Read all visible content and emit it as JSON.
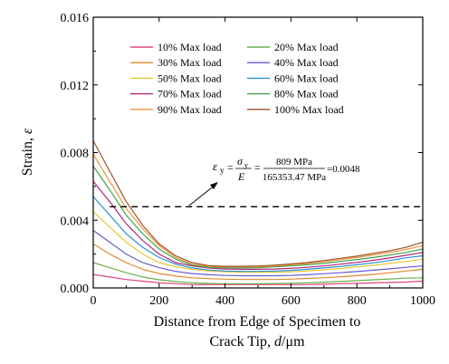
{
  "chart_data": {
    "type": "line",
    "title": "",
    "xlabel_line1": "Distance from Edge of Specimen to",
    "xlabel_line2_prefix": "Crack Tip, ",
    "xlabel_line2_var": "d",
    "xlabel_line2_unit": "/μm",
    "ylabel_text": "Strain, ",
    "ylabel_var": "ε",
    "xlim": [
      0,
      1000
    ],
    "ylim": [
      0.0,
      0.016
    ],
    "xticks": [
      0,
      200,
      400,
      600,
      800,
      1000
    ],
    "xtick_labels": [
      "0",
      "200",
      "400",
      "600",
      "800",
      "1000"
    ],
    "yticks": [
      0.0,
      0.004,
      0.008,
      0.012,
      0.016
    ],
    "ytick_labels": [
      "0.000",
      "0.004",
      "0.008",
      "0.012",
      "0.016"
    ],
    "grid": false,
    "legend_position": "top-center",
    "x": [
      0,
      50,
      100,
      150,
      200,
      250,
      300,
      350,
      400,
      450,
      500,
      550,
      600,
      650,
      700,
      750,
      800,
      850,
      900,
      950,
      1000
    ],
    "series": [
      {
        "name": "10% Max load",
        "color": "#e0457b",
        "values": [
          0.0008,
          0.00065,
          0.0005,
          0.0004,
          0.0003,
          0.00025,
          0.0002,
          0.0002,
          0.0002,
          0.0002,
          0.0002,
          0.0002,
          0.0002,
          0.0002,
          0.00022,
          0.00025,
          0.00027,
          0.0003,
          0.00032,
          0.00035,
          0.0004
        ]
      },
      {
        "name": "20% Max load",
        "color": "#6ab04c",
        "values": [
          0.0015,
          0.0012,
          0.0009,
          0.00065,
          0.00048,
          0.00038,
          0.0003,
          0.00027,
          0.00025,
          0.00025,
          0.00025,
          0.00026,
          0.00028,
          0.0003,
          0.00034,
          0.00038,
          0.00043,
          0.00048,
          0.00053,
          0.00058,
          0.0006
        ]
      },
      {
        "name": "30% Max load",
        "color": "#e08a2e",
        "values": [
          0.0026,
          0.002,
          0.0015,
          0.0011,
          0.00085,
          0.0007,
          0.0006,
          0.00055,
          0.00052,
          0.0005,
          0.0005,
          0.0005,
          0.00052,
          0.00056,
          0.0006,
          0.00066,
          0.00073,
          0.0008,
          0.0009,
          0.001,
          0.0011
        ]
      },
      {
        "name": "40% Max load",
        "color": "#6a5acd",
        "values": [
          0.0034,
          0.0027,
          0.002,
          0.0015,
          0.0012,
          0.00098,
          0.00085,
          0.00078,
          0.00074,
          0.00072,
          0.00072,
          0.00072,
          0.00074,
          0.00078,
          0.00084,
          0.0009,
          0.00097,
          0.00105,
          0.00113,
          0.00122,
          0.0013
        ]
      },
      {
        "name": "50% Max load",
        "color": "#e6c833",
        "values": [
          0.0045,
          0.0036,
          0.0027,
          0.002,
          0.0015,
          0.00125,
          0.0011,
          0.001,
          0.00095,
          0.00093,
          0.00092,
          0.00093,
          0.00095,
          0.001,
          0.00107,
          0.00115,
          0.00124,
          0.00134,
          0.00145,
          0.00156,
          0.0017
        ]
      },
      {
        "name": "60% Max load",
        "color": "#2a8fd6",
        "values": [
          0.0054,
          0.0043,
          0.0032,
          0.0024,
          0.0018,
          0.0014,
          0.00118,
          0.00106,
          0.001,
          0.00098,
          0.00098,
          0.001,
          0.00104,
          0.0011,
          0.00118,
          0.00127,
          0.00137,
          0.00148,
          0.00162,
          0.00178,
          0.0019
        ]
      },
      {
        "name": "70% Max load",
        "color": "#b0267a",
        "values": [
          0.0063,
          0.0051,
          0.0038,
          0.0028,
          0.002,
          0.0015,
          0.0013,
          0.00118,
          0.00112,
          0.0011,
          0.0011,
          0.00112,
          0.00116,
          0.00122,
          0.0013,
          0.0014,
          0.00151,
          0.00163,
          0.00177,
          0.00193,
          0.0021
        ]
      },
      {
        "name": "80% Max load",
        "color": "#3fa34d",
        "values": [
          0.0072,
          0.0058,
          0.0043,
          0.0032,
          0.0023,
          0.0017,
          0.00135,
          0.00122,
          0.00118,
          0.00118,
          0.0012,
          0.00125,
          0.0013,
          0.00137,
          0.00145,
          0.00156,
          0.00168,
          0.0018,
          0.00195,
          0.0021,
          0.0023
        ]
      },
      {
        "name": "90% Max load",
        "color": "#e8973a",
        "values": [
          0.0079,
          0.0063,
          0.0047,
          0.0035,
          0.0025,
          0.0018,
          0.0014,
          0.00128,
          0.00124,
          0.00124,
          0.00125,
          0.0013,
          0.00137,
          0.00145,
          0.00155,
          0.00167,
          0.0018,
          0.00195,
          0.0021,
          0.00228,
          0.0025
        ]
      },
      {
        "name": "100% Max load",
        "color": "#a0522d",
        "values": [
          0.0087,
          0.0069,
          0.0051,
          0.0037,
          0.0026,
          0.0019,
          0.0015,
          0.00132,
          0.00128,
          0.00128,
          0.0013,
          0.00135,
          0.00142,
          0.0015,
          0.00162,
          0.00175,
          0.00188,
          0.00204,
          0.0022,
          0.0024,
          0.0027
        ]
      }
    ],
    "reference_line": {
      "y": 0.0048,
      "x_start": 50,
      "x_end": 1000,
      "style": "dashed",
      "color": "#000000"
    },
    "annotation": {
      "lhs_var": "ε",
      "lhs_sub": "y",
      "frac1_num_var": "σ",
      "frac1_num_sub": "y",
      "frac1_den": "E",
      "frac2_num": "809 MPa",
      "frac2_den": "165353.47 MPa",
      "result": "=0.0048",
      "arrow_target": [
        500,
        0.0048
      ]
    }
  }
}
